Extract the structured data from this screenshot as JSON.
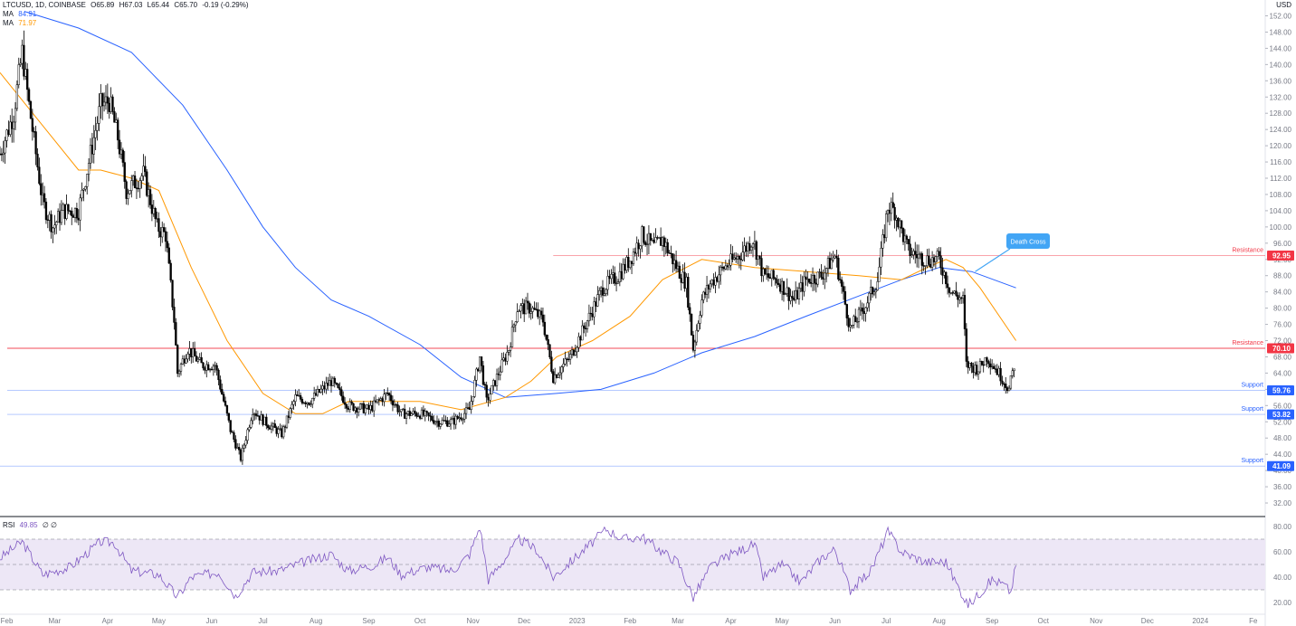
{
  "header": {
    "symbol": "LTCUSD, 1D, COINBASE",
    "open": "O65.89",
    "high": "H67.03",
    "low": "L65.44",
    "close": "C65.70",
    "change": "-0.19 (-0.29%)",
    "currency": "USD"
  },
  "indicators": {
    "ma1": {
      "label": "MA",
      "value": "84.91",
      "color": "#2962ff"
    },
    "ma2": {
      "label": "MA",
      "value": "71.97",
      "color": "#ff9800"
    },
    "rsi": {
      "label": "RSI",
      "value": "49.85",
      "extra": "∅ ∅",
      "color": "#7e57c2"
    }
  },
  "colors": {
    "candle": "#000000",
    "resistance": "#f23645",
    "support": "#2962ff",
    "rsi_band": "#ede7f6",
    "annotation": "#42a5f5"
  },
  "chart_data": [
    {
      "type": "candlestick",
      "ylim": [
        30,
        152
      ],
      "y_ticks": [
        "152.00",
        "148.00",
        "144.00",
        "140.00",
        "136.00",
        "132.00",
        "128.00",
        "124.00",
        "120.00",
        "116.00",
        "112.00",
        "108.00",
        "104.00",
        "100.00",
        "96.00",
        "92.00",
        "88.00",
        "84.00",
        "80.00",
        "76.00",
        "72.00",
        "68.00",
        "64.00",
        "60.00",
        "56.00",
        "52.00",
        "48.00",
        "44.00",
        "40.00",
        "36.00",
        "32.00"
      ],
      "x_ticks": [
        "Feb",
        "Mar",
        "Apr",
        "May",
        "Jun",
        "Jul",
        "Aug",
        "Sep",
        "Oct",
        "Nov",
        "Dec",
        "2023",
        "Feb",
        "Mar",
        "Apr",
        "May",
        "Jun",
        "Jul",
        "Aug",
        "Sep",
        "Oct",
        "Nov",
        "Dec",
        "2024",
        "Fe"
      ],
      "x_tick_dates": [
        "2022-02-01",
        "2022-03-01",
        "2022-04-01",
        "2022-05-01",
        "2022-06-01",
        "2022-07-01",
        "2022-08-01",
        "2022-09-01",
        "2022-10-01",
        "2022-11-01",
        "2022-12-01",
        "2023-01-01",
        "2023-02-01",
        "2023-03-01",
        "2023-04-01",
        "2023-05-01",
        "2023-06-01",
        "2023-07-01",
        "2023-08-01",
        "2023-09-01",
        "2023-10-01",
        "2023-11-01",
        "2023-12-01",
        "2024-01-01",
        "2024-02-01"
      ],
      "price_path": [
        {
          "date": "2022-01-28",
          "value": 118
        },
        {
          "date": "2022-02-05",
          "value": 128
        },
        {
          "date": "2022-02-10",
          "value": 143
        },
        {
          "date": "2022-02-14",
          "value": 130
        },
        {
          "date": "2022-02-22",
          "value": 106
        },
        {
          "date": "2022-02-28",
          "value": 100
        },
        {
          "date": "2022-03-06",
          "value": 104
        },
        {
          "date": "2022-03-15",
          "value": 104
        },
        {
          "date": "2022-03-22",
          "value": 118
        },
        {
          "date": "2022-03-28",
          "value": 130
        },
        {
          "date": "2022-04-02",
          "value": 131
        },
        {
          "date": "2022-04-07",
          "value": 122
        },
        {
          "date": "2022-04-12",
          "value": 109
        },
        {
          "date": "2022-04-22",
          "value": 113
        },
        {
          "date": "2022-04-30",
          "value": 100
        },
        {
          "date": "2022-05-05",
          "value": 98
        },
        {
          "date": "2022-05-10",
          "value": 77
        },
        {
          "date": "2022-05-12",
          "value": 64
        },
        {
          "date": "2022-05-18",
          "value": 70
        },
        {
          "date": "2022-05-26",
          "value": 66
        },
        {
          "date": "2022-06-03",
          "value": 66
        },
        {
          "date": "2022-06-12",
          "value": 50
        },
        {
          "date": "2022-06-18",
          "value": 43
        },
        {
          "date": "2022-06-25",
          "value": 55
        },
        {
          "date": "2022-07-02",
          "value": 52
        },
        {
          "date": "2022-07-12",
          "value": 49
        },
        {
          "date": "2022-07-20",
          "value": 58
        },
        {
          "date": "2022-07-28",
          "value": 57
        },
        {
          "date": "2022-08-10",
          "value": 62
        },
        {
          "date": "2022-08-20",
          "value": 56
        },
        {
          "date": "2022-09-01",
          "value": 55
        },
        {
          "date": "2022-09-12",
          "value": 59
        },
        {
          "date": "2022-09-20",
          "value": 54
        },
        {
          "date": "2022-10-01",
          "value": 54
        },
        {
          "date": "2022-10-12",
          "value": 52
        },
        {
          "date": "2022-10-20",
          "value": 52
        },
        {
          "date": "2022-10-30",
          "value": 55
        },
        {
          "date": "2022-11-05",
          "value": 68
        },
        {
          "date": "2022-11-09",
          "value": 57
        },
        {
          "date": "2022-11-14",
          "value": 62
        },
        {
          "date": "2022-11-22",
          "value": 70
        },
        {
          "date": "2022-11-27",
          "value": 80
        },
        {
          "date": "2022-12-05",
          "value": 80
        },
        {
          "date": "2022-12-12",
          "value": 77
        },
        {
          "date": "2022-12-18",
          "value": 63
        },
        {
          "date": "2022-12-28",
          "value": 68
        },
        {
          "date": "2023-01-06",
          "value": 76
        },
        {
          "date": "2023-01-16",
          "value": 85
        },
        {
          "date": "2023-01-25",
          "value": 88
        },
        {
          "date": "2023-02-01",
          "value": 92
        },
        {
          "date": "2023-02-08",
          "value": 98
        },
        {
          "date": "2023-02-15",
          "value": 95
        },
        {
          "date": "2023-02-20",
          "value": 97
        },
        {
          "date": "2023-02-27",
          "value": 91
        },
        {
          "date": "2023-03-06",
          "value": 86
        },
        {
          "date": "2023-03-10",
          "value": 70
        },
        {
          "date": "2023-03-15",
          "value": 82
        },
        {
          "date": "2023-03-20",
          "value": 86
        },
        {
          "date": "2023-03-28",
          "value": 90
        },
        {
          "date": "2023-04-06",
          "value": 93
        },
        {
          "date": "2023-04-14",
          "value": 97
        },
        {
          "date": "2023-04-20",
          "value": 88
        },
        {
          "date": "2023-04-28",
          "value": 87
        },
        {
          "date": "2023-05-08",
          "value": 82
        },
        {
          "date": "2023-05-15",
          "value": 87
        },
        {
          "date": "2023-05-24",
          "value": 88
        },
        {
          "date": "2023-06-01",
          "value": 93
        },
        {
          "date": "2023-06-10",
          "value": 75
        },
        {
          "date": "2023-06-18",
          "value": 80
        },
        {
          "date": "2023-06-26",
          "value": 87
        },
        {
          "date": "2023-07-02",
          "value": 105
        },
        {
          "date": "2023-07-06",
          "value": 104
        },
        {
          "date": "2023-07-14",
          "value": 94
        },
        {
          "date": "2023-07-24",
          "value": 92
        },
        {
          "date": "2023-08-01",
          "value": 92
        },
        {
          "date": "2023-08-08",
          "value": 84
        },
        {
          "date": "2023-08-15",
          "value": 82
        },
        {
          "date": "2023-08-17",
          "value": 66
        },
        {
          "date": "2023-08-24",
          "value": 65
        },
        {
          "date": "2023-08-29",
          "value": 68
        },
        {
          "date": "2023-09-05",
          "value": 64
        },
        {
          "date": "2023-09-11",
          "value": 60
        },
        {
          "date": "2023-09-14",
          "value": 66
        }
      ],
      "ma_long_path": [
        {
          "date": "2022-02-12",
          "value": 153
        },
        {
          "date": "2022-03-15",
          "value": 149
        },
        {
          "date": "2022-04-15",
          "value": 143
        },
        {
          "date": "2022-05-15",
          "value": 130
        },
        {
          "date": "2022-06-10",
          "value": 114
        },
        {
          "date": "2022-07-01",
          "value": 100
        },
        {
          "date": "2022-07-20",
          "value": 90
        },
        {
          "date": "2022-08-10",
          "value": 82
        },
        {
          "date": "2022-09-01",
          "value": 78
        },
        {
          "date": "2022-10-01",
          "value": 71
        },
        {
          "date": "2022-10-25",
          "value": 63
        },
        {
          "date": "2022-11-20",
          "value": 58
        },
        {
          "date": "2022-12-20",
          "value": 59
        },
        {
          "date": "2023-01-15",
          "value": 60
        },
        {
          "date": "2023-02-15",
          "value": 64
        },
        {
          "date": "2023-03-15",
          "value": 69
        },
        {
          "date": "2023-04-15",
          "value": 73
        },
        {
          "date": "2023-05-15",
          "value": 78
        },
        {
          "date": "2023-06-15",
          "value": 83
        },
        {
          "date": "2023-07-10",
          "value": 87
        },
        {
          "date": "2023-08-01",
          "value": 90
        },
        {
          "date": "2023-08-20",
          "value": 89
        },
        {
          "date": "2023-09-15",
          "value": 85
        }
      ],
      "ma_short_path": [
        {
          "date": "2022-01-28",
          "value": 138
        },
        {
          "date": "2022-02-20",
          "value": 126
        },
        {
          "date": "2022-03-15",
          "value": 114
        },
        {
          "date": "2022-03-28",
          "value": 114
        },
        {
          "date": "2022-04-15",
          "value": 112
        },
        {
          "date": "2022-05-01",
          "value": 109
        },
        {
          "date": "2022-05-20",
          "value": 90
        },
        {
          "date": "2022-06-10",
          "value": 72
        },
        {
          "date": "2022-07-01",
          "value": 59
        },
        {
          "date": "2022-07-20",
          "value": 54
        },
        {
          "date": "2022-08-05",
          "value": 54
        },
        {
          "date": "2022-08-20",
          "value": 57
        },
        {
          "date": "2022-09-10",
          "value": 57
        },
        {
          "date": "2022-10-01",
          "value": 57
        },
        {
          "date": "2022-10-25",
          "value": 55
        },
        {
          "date": "2022-11-20",
          "value": 58
        },
        {
          "date": "2022-12-05",
          "value": 62
        },
        {
          "date": "2022-12-20",
          "value": 68
        },
        {
          "date": "2023-01-10",
          "value": 72
        },
        {
          "date": "2023-02-01",
          "value": 78
        },
        {
          "date": "2023-02-20",
          "value": 87
        },
        {
          "date": "2023-03-15",
          "value": 92
        },
        {
          "date": "2023-04-15",
          "value": 90
        },
        {
          "date": "2023-05-15",
          "value": 89
        },
        {
          "date": "2023-06-15",
          "value": 88
        },
        {
          "date": "2023-07-10",
          "value": 87
        },
        {
          "date": "2023-07-25",
          "value": 90
        },
        {
          "date": "2023-08-05",
          "value": 92
        },
        {
          "date": "2023-08-15",
          "value": 90
        },
        {
          "date": "2023-08-25",
          "value": 85
        },
        {
          "date": "2023-09-15",
          "value": 72
        }
      ],
      "levels": [
        {
          "label": "Resistance",
          "value": 92.95,
          "value_text": "92.95",
          "kind": "resistance"
        },
        {
          "label": "Resistance",
          "value": 70.1,
          "value_text": "70.10",
          "kind": "resistance"
        },
        {
          "label": "Support",
          "value": 59.76,
          "value_text": "59.76",
          "kind": "support"
        },
        {
          "label": "Support",
          "value": 53.82,
          "value_text": "53.82",
          "kind": "support"
        },
        {
          "label": "Support",
          "value": 41.09,
          "value_text": "41.09",
          "kind": "support"
        }
      ],
      "annotations": [
        {
          "text": "Death Cross",
          "date": "2023-08-20",
          "value": 89
        }
      ]
    },
    {
      "type": "line",
      "series": [
        {
          "name": "RSI"
        }
      ],
      "ylim": [
        12,
        84
      ],
      "y_ticks": [
        "80.00",
        "60.00",
        "40.00",
        "20.00"
      ],
      "band": [
        30,
        70
      ],
      "midline": 50,
      "path": [
        {
          "date": "2022-01-28",
          "value": 55
        },
        {
          "date": "2022-02-10",
          "value": 68
        },
        {
          "date": "2022-02-22",
          "value": 42
        },
        {
          "date": "2022-03-10",
          "value": 48
        },
        {
          "date": "2022-03-28",
          "value": 68
        },
        {
          "date": "2022-04-05",
          "value": 67
        },
        {
          "date": "2022-04-15",
          "value": 45
        },
        {
          "date": "2022-05-01",
          "value": 42
        },
        {
          "date": "2022-05-12",
          "value": 24
        },
        {
          "date": "2022-05-20",
          "value": 40
        },
        {
          "date": "2022-06-05",
          "value": 44
        },
        {
          "date": "2022-06-15",
          "value": 25
        },
        {
          "date": "2022-06-25",
          "value": 44
        },
        {
          "date": "2022-07-10",
          "value": 45
        },
        {
          "date": "2022-07-25",
          "value": 52
        },
        {
          "date": "2022-08-10",
          "value": 58
        },
        {
          "date": "2022-08-20",
          "value": 45
        },
        {
          "date": "2022-09-05",
          "value": 50
        },
        {
          "date": "2022-09-12",
          "value": 56
        },
        {
          "date": "2022-09-20",
          "value": 42
        },
        {
          "date": "2022-10-05",
          "value": 48
        },
        {
          "date": "2022-10-20",
          "value": 45
        },
        {
          "date": "2022-10-30",
          "value": 58
        },
        {
          "date": "2022-11-05",
          "value": 80
        },
        {
          "date": "2022-11-10",
          "value": 38
        },
        {
          "date": "2022-11-20",
          "value": 55
        },
        {
          "date": "2022-11-28",
          "value": 70
        },
        {
          "date": "2022-12-08",
          "value": 62
        },
        {
          "date": "2022-12-18",
          "value": 40
        },
        {
          "date": "2022-12-28",
          "value": 52
        },
        {
          "date": "2023-01-08",
          "value": 65
        },
        {
          "date": "2023-01-18",
          "value": 78
        },
        {
          "date": "2023-01-28",
          "value": 70
        },
        {
          "date": "2023-02-08",
          "value": 72
        },
        {
          "date": "2023-02-20",
          "value": 60
        },
        {
          "date": "2023-03-01",
          "value": 52
        },
        {
          "date": "2023-03-10",
          "value": 24
        },
        {
          "date": "2023-03-20",
          "value": 48
        },
        {
          "date": "2023-04-01",
          "value": 58
        },
        {
          "date": "2023-04-15",
          "value": 66
        },
        {
          "date": "2023-04-20",
          "value": 40
        },
        {
          "date": "2023-05-01",
          "value": 50
        },
        {
          "date": "2023-05-12",
          "value": 36
        },
        {
          "date": "2023-05-24",
          "value": 55
        },
        {
          "date": "2023-06-01",
          "value": 62
        },
        {
          "date": "2023-06-10",
          "value": 30
        },
        {
          "date": "2023-06-22",
          "value": 45
        },
        {
          "date": "2023-07-02",
          "value": 76
        },
        {
          "date": "2023-07-10",
          "value": 60
        },
        {
          "date": "2023-07-24",
          "value": 52
        },
        {
          "date": "2023-08-05",
          "value": 52
        },
        {
          "date": "2023-08-10",
          "value": 38
        },
        {
          "date": "2023-08-18",
          "value": 18
        },
        {
          "date": "2023-08-24",
          "value": 26
        },
        {
          "date": "2023-09-01",
          "value": 38
        },
        {
          "date": "2023-09-08",
          "value": 34
        },
        {
          "date": "2023-09-12",
          "value": 28
        },
        {
          "date": "2023-09-15",
          "value": 50
        }
      ]
    }
  ]
}
